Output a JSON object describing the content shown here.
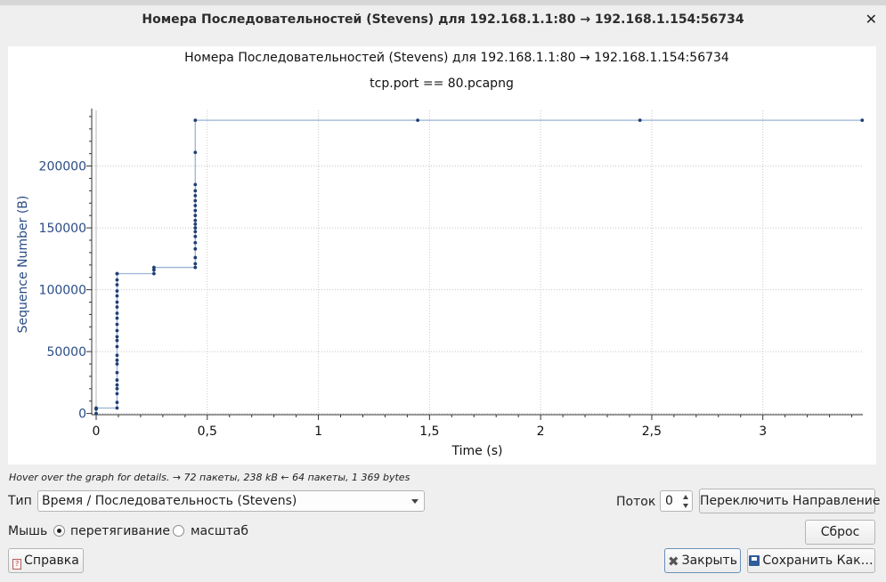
{
  "window": {
    "title": "Номера Последовательностей (Stevens) для 192.168.1.1:80 → 192.168.1.154:56734",
    "close_glyph": "✕"
  },
  "graph": {
    "title": "Номера Последовательностей (Stevens) для 192.168.1.1:80 → 192.168.1.154:56734",
    "subtitle": "tcp.port == 80.pcapng"
  },
  "chart_data": {
    "type": "scatter",
    "title": "Номера Последовательностей (Stevens) для 192.168.1.1:80 → 192.168.1.154:56734",
    "subtitle": "tcp.port == 80.pcapng",
    "xlabel": "Time (s)",
    "ylabel": "Sequence Number (B)",
    "xlim": [
      -0.02,
      3.45
    ],
    "ylim": [
      -1000,
      245000
    ],
    "xticks": [
      0,
      0.5,
      1,
      1.5,
      2,
      2.5,
      3
    ],
    "xtick_labels": [
      "0",
      "0,5",
      "1",
      "1,5",
      "2",
      "2,5",
      "3"
    ],
    "yticks": [
      0,
      50000,
      100000,
      150000,
      200000
    ],
    "ytick_labels": [
      "0",
      "50000",
      "100000",
      "150000",
      "200000"
    ],
    "grid": true,
    "color": "#1f3f73",
    "line_color": "#9bb3d6",
    "series": [
      {
        "x": [
          0,
          0,
          0,
          0.094,
          0.094,
          0.094,
          0.094,
          0.094,
          0.094,
          0.094,
          0.094,
          0.094,
          0.094,
          0.094,
          0.094,
          0.094,
          0.094,
          0.094,
          0.094,
          0.094,
          0.094,
          0.094,
          0.094,
          0.094,
          0.094,
          0.094,
          0.094,
          0.094,
          0.26,
          0.26,
          0.26,
          0.446,
          0.446,
          0.446,
          0.446,
          0.446,
          0.446,
          0.446,
          0.446,
          0.446,
          0.446,
          0.446,
          0.446,
          0.446,
          0.446,
          0.446,
          0.446,
          0.446,
          0.446,
          0.446,
          1.447,
          2.447,
          3.447
        ],
        "y": [
          0,
          3500,
          4400,
          4400,
          9000,
          16000,
          20000,
          23000,
          27000,
          33000,
          40000,
          43000,
          47000,
          54000,
          59000,
          62000,
          67000,
          72000,
          77000,
          81000,
          86000,
          90000,
          95000,
          99000,
          104000,
          108000,
          113000,
          113000,
          113000,
          116000,
          118000,
          118000,
          121000,
          126000,
          133000,
          138000,
          143000,
          147000,
          150000,
          153000,
          156000,
          160000,
          164000,
          168000,
          172000,
          176000,
          180000,
          185000,
          211000,
          237000,
          237000,
          237000,
          237000
        ]
      }
    ]
  },
  "hint": "Hover over the graph for details. → 72 пакеты, 238 kB ← 64 пакеты, 1 369 bytes",
  "controls": {
    "type_label": "Тип",
    "type_value": "Время / Последовательность (Stevens)",
    "stream_label": "Поток",
    "stream_value": "0",
    "switch_direction": "Переключить Направление",
    "mouse_label": "Мышь",
    "mouse_drag": "перетягивание",
    "mouse_zoom": "масштаб",
    "reset": "Сброс"
  },
  "buttons": {
    "help": "Справка",
    "close": "Закрыть",
    "save_as": "Сохранить Как…"
  }
}
